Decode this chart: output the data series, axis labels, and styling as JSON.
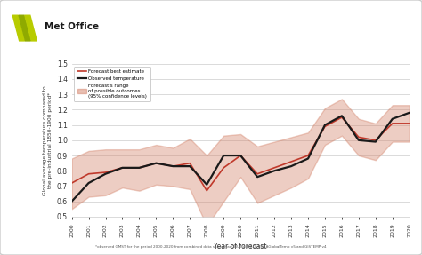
{
  "years": [
    2000,
    2001,
    2002,
    2003,
    2004,
    2005,
    2006,
    2007,
    2008,
    2009,
    2010,
    2011,
    2012,
    2013,
    2014,
    2015,
    2016,
    2017,
    2018,
    2019,
    2020
  ],
  "observed": [
    0.6,
    0.72,
    0.78,
    0.82,
    0.82,
    0.85,
    0.83,
    0.83,
    0.71,
    0.9,
    0.9,
    0.76,
    0.8,
    0.83,
    0.88,
    1.1,
    1.16,
    1.0,
    0.99,
    1.14,
    1.18
  ],
  "forecast": [
    0.72,
    0.78,
    0.79,
    0.82,
    0.82,
    0.85,
    0.83,
    0.85,
    0.67,
    0.82,
    0.9,
    0.78,
    0.82,
    0.86,
    0.9,
    1.09,
    1.15,
    1.02,
    1.0,
    1.11,
    1.11
  ],
  "ci_upper": [
    0.88,
    0.93,
    0.94,
    0.94,
    0.94,
    0.97,
    0.95,
    1.01,
    0.9,
    1.03,
    1.04,
    0.96,
    0.99,
    1.02,
    1.05,
    1.21,
    1.27,
    1.14,
    1.11,
    1.23,
    1.23
  ],
  "ci_lower": [
    0.55,
    0.63,
    0.64,
    0.69,
    0.67,
    0.71,
    0.7,
    0.68,
    0.44,
    0.6,
    0.76,
    0.59,
    0.64,
    0.69,
    0.75,
    0.97,
    1.03,
    0.9,
    0.87,
    0.99,
    0.99
  ],
  "ylim": [
    0.5,
    1.5
  ],
  "yticks": [
    0.5,
    0.6,
    0.7,
    0.8,
    0.9,
    1.0,
    1.1,
    1.2,
    1.3,
    1.4,
    1.5
  ],
  "forecast_color": "#c0392b",
  "observed_color": "#1a1a1a",
  "ci_color": "#d4836a",
  "ci_alpha": 0.4,
  "background_color": "#ffffff",
  "ylabel": "Global average temperature compared to\nthe pre-industrial 1850-1900 period*",
  "xlabel": "Year of forecast",
  "footnote": "*observed GMST for the period 2000-2020 from combined data series HadCRUT 4.6.0.0, NOAAGlobalTemp v5 and GISTEMP v4",
  "legend_forecast": "Forecast best estimate",
  "legend_observed": "Observed temperature",
  "legend_ci": "Forecast's range\nof possible outcomes\n(95% confidence levels)",
  "logo_text": "Met Office",
  "grid_color": "#cccccc",
  "logo_colors": [
    "#b8cc00",
    "#8faa00"
  ],
  "border_color": "#cccccc"
}
